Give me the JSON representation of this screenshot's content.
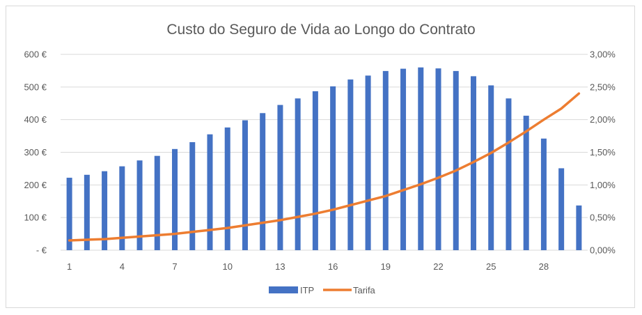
{
  "chart_data": {
    "type": "bar",
    "title": "Custo do Seguro de Vida ao Longo do Contrato",
    "x": [
      1,
      2,
      3,
      4,
      5,
      6,
      7,
      8,
      9,
      10,
      11,
      12,
      13,
      14,
      15,
      16,
      17,
      18,
      19,
      20,
      21,
      22,
      23,
      24,
      25,
      26,
      27,
      28,
      29,
      30
    ],
    "x_tick_labels": [
      "1",
      "4",
      "7",
      "10",
      "13",
      "16",
      "19",
      "22",
      "25",
      "28"
    ],
    "x_tick_positions": [
      1,
      4,
      7,
      10,
      13,
      16,
      19,
      22,
      25,
      28
    ],
    "y_left_range": [
      0,
      600
    ],
    "y_left_tick_values": [
      0,
      100,
      200,
      300,
      400,
      500,
      600
    ],
    "y_left_tick_labels": [
      "- €",
      "100 €",
      "200 €",
      "300 €",
      "400 €",
      "500 €",
      "600 €"
    ],
    "y_right_range": [
      0,
      3.0
    ],
    "y_right_tick_values": [
      0,
      0.5,
      1.0,
      1.5,
      2.0,
      2.5,
      3.0
    ],
    "y_right_tick_labels": [
      "0,00%",
      "0,50%",
      "1,00%",
      "1,50%",
      "2,00%",
      "2,50%",
      "3,00%"
    ],
    "grid": true,
    "legend_position": "bottom",
    "series": [
      {
        "name": "ITP",
        "type": "bar",
        "axis": "left",
        "color": "#4472c4",
        "values": [
          222,
          231,
          242,
          257,
          275,
          289,
          310,
          331,
          355,
          376,
          398,
          420,
          445,
          465,
          487,
          502,
          523,
          535,
          549,
          556,
          560,
          557,
          549,
          533,
          505,
          465,
          412,
          342,
          251,
          137
        ]
      },
      {
        "name": "Tarifa",
        "type": "line",
        "axis": "right",
        "color": "#ed7d31",
        "values": [
          0.15,
          0.16,
          0.17,
          0.19,
          0.21,
          0.23,
          0.25,
          0.28,
          0.31,
          0.34,
          0.38,
          0.42,
          0.46,
          0.51,
          0.56,
          0.62,
          0.69,
          0.76,
          0.83,
          0.92,
          1.01,
          1.11,
          1.22,
          1.35,
          1.49,
          1.65,
          1.82,
          2.0,
          2.17,
          2.4
        ]
      }
    ]
  }
}
